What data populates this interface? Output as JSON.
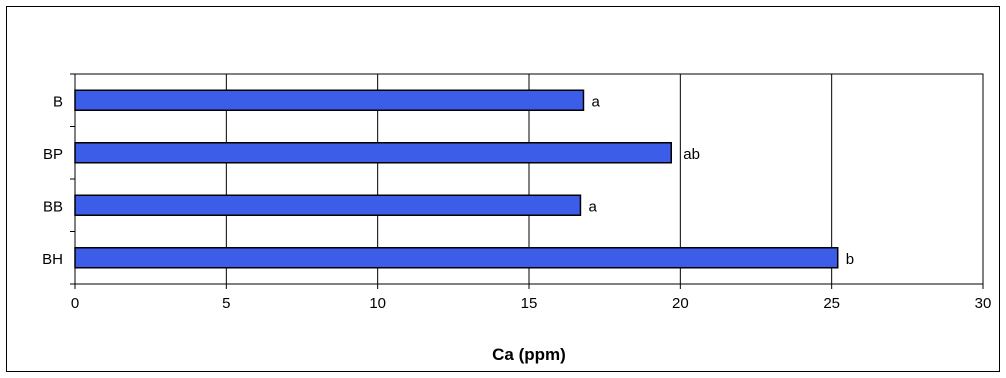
{
  "chart_data": {
    "type": "bar",
    "orientation": "horizontal",
    "categories": [
      "B",
      "BP",
      "BB",
      "BH"
    ],
    "values": [
      16.8,
      19.7,
      16.7,
      25.2
    ],
    "bar_labels": [
      "a",
      "ab",
      "a",
      "b"
    ],
    "title": "",
    "xlabel": "Ca (ppm)",
    "ylabel": "",
    "xlim": [
      0,
      30
    ],
    "xticks": [
      0,
      5,
      10,
      15,
      20,
      25,
      30
    ],
    "xtick_labels": [
      "0",
      "5",
      "10",
      "15",
      "20",
      "25",
      "30"
    ],
    "grid": "vertical",
    "legend": "none",
    "bar_color": "#3b5de7"
  }
}
